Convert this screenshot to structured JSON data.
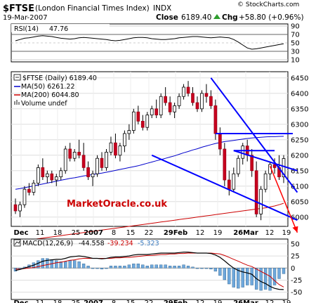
{
  "header": {
    "symbol": "$FTSE",
    "name": "(London Financial Times Index)",
    "exchange": "INDX",
    "date": "19-Mar-2007",
    "close_label": "Close",
    "close_value": "6189.40",
    "chg_label": "Chg",
    "chg_value": "+58.80 (+0.96%)",
    "watermark": "© StockCharts.com",
    "chg_arrow_color": "#2e9e2e"
  },
  "rsi": {
    "label": "RSI(14)",
    "value": "47.76",
    "ticks": [
      "90",
      "70",
      "50",
      "30",
      "10"
    ],
    "tick_values": [
      90,
      70,
      50,
      30,
      10
    ],
    "ylim": [
      5,
      95
    ],
    "values": [
      55,
      58,
      61,
      62,
      64,
      66,
      67,
      66,
      65,
      63,
      61,
      60,
      59,
      60,
      62,
      63,
      62,
      61,
      60,
      59,
      58,
      56,
      55,
      56,
      58,
      60,
      62,
      63,
      63,
      62,
      60,
      59,
      58,
      58,
      59,
      60,
      62,
      63,
      64,
      65,
      65,
      64,
      63,
      62,
      63,
      64,
      63,
      62,
      58,
      52,
      45,
      38,
      35,
      36,
      38,
      40,
      42,
      44,
      46,
      47.76
    ]
  },
  "price": {
    "legend_title": "$FTSE (Daily) 6189.40",
    "legend_ma50": "MA(50) 6261.22",
    "legend_ma200": "MA(200) 6044.80",
    "legend_volume": "Volume undef",
    "ma50_color": "#0000cc",
    "ma200_color": "#cc0000",
    "watermark_text": "MarketOracle.co.uk",
    "ticks": [
      "6450",
      "6400",
      "6350",
      "6300",
      "6250",
      "6200",
      "6150",
      "6100",
      "6050",
      "6000"
    ],
    "tick_values": [
      6450,
      6400,
      6350,
      6300,
      6250,
      6200,
      6150,
      6100,
      6050,
      6000
    ],
    "ylim": [
      5970,
      6470
    ]
  },
  "x_axis": {
    "labels": [
      "Dec",
      "11",
      "18",
      "25",
      "2007",
      "8",
      "15",
      "22",
      "29Feb",
      "12",
      "19",
      "26Mar",
      "12",
      "19"
    ]
  },
  "macd": {
    "label": "MACD(12,26,9)",
    "v1": "-44.558",
    "v2": "-39.234",
    "v3": "-5.323",
    "ticks": [
      "50",
      "25",
      "0",
      "-25",
      "-50"
    ],
    "tick_values": [
      50,
      25,
      0,
      -25,
      -50
    ],
    "ylim": [
      -65,
      60
    ],
    "line_color": "#000000",
    "signal_color": "#cc0000",
    "hist_color": "#6fa8dc"
  },
  "chart_data": {
    "type": "candlestick",
    "title": "$FTSE (London Financial Times Index) INDX",
    "n_bars": 60,
    "ohlc": [
      [
        6040,
        6060,
        6010,
        6020
      ],
      [
        6020,
        6050,
        6000,
        6040
      ],
      [
        6040,
        6100,
        6030,
        6090
      ],
      [
        6090,
        6110,
        6070,
        6080
      ],
      [
        6080,
        6120,
        6070,
        6110
      ],
      [
        6110,
        6170,
        6100,
        6160
      ],
      [
        6160,
        6190,
        6120,
        6130
      ],
      [
        6130,
        6150,
        6110,
        6140
      ],
      [
        6140,
        6150,
        6110,
        6120
      ],
      [
        6120,
        6140,
        6100,
        6130
      ],
      [
        6130,
        6160,
        6120,
        6150
      ],
      [
        6150,
        6230,
        6140,
        6220
      ],
      [
        6220,
        6240,
        6180,
        6190
      ],
      [
        6190,
        6220,
        6180,
        6210
      ],
      [
        6210,
        6250,
        6190,
        6200
      ],
      [
        6200,
        6240,
        6150,
        6160
      ],
      [
        6160,
        6180,
        6120,
        6130
      ],
      [
        6130,
        6150,
        6100,
        6140
      ],
      [
        6140,
        6200,
        6130,
        6190
      ],
      [
        6190,
        6210,
        6150,
        6160
      ],
      [
        6160,
        6220,
        6150,
        6210
      ],
      [
        6210,
        6260,
        6200,
        6240
      ],
      [
        6240,
        6270,
        6190,
        6200
      ],
      [
        6200,
        6240,
        6180,
        6230
      ],
      [
        6230,
        6280,
        6210,
        6270
      ],
      [
        6270,
        6300,
        6250,
        6280
      ],
      [
        6280,
        6350,
        6270,
        6340
      ],
      [
        6340,
        6360,
        6300,
        6310
      ],
      [
        6310,
        6330,
        6280,
        6290
      ],
      [
        6290,
        6340,
        6280,
        6330
      ],
      [
        6330,
        6360,
        6320,
        6350
      ],
      [
        6350,
        6380,
        6320,
        6330
      ],
      [
        6330,
        6400,
        6320,
        6390
      ],
      [
        6390,
        6420,
        6360,
        6370
      ],
      [
        6370,
        6390,
        6330,
        6340
      ],
      [
        6340,
        6370,
        6320,
        6360
      ],
      [
        6360,
        6400,
        6350,
        6390
      ],
      [
        6390,
        6430,
        6380,
        6420
      ],
      [
        6420,
        6440,
        6390,
        6400
      ],
      [
        6400,
        6420,
        6360,
        6370
      ],
      [
        6370,
        6390,
        6340,
        6350
      ],
      [
        6350,
        6410,
        6340,
        6400
      ],
      [
        6400,
        6430,
        6370,
        6390
      ],
      [
        6390,
        6410,
        6350,
        6360
      ],
      [
        6360,
        6380,
        6250,
        6270
      ],
      [
        6270,
        6290,
        6200,
        6220
      ],
      [
        6220,
        6240,
        6100,
        6120
      ],
      [
        6120,
        6150,
        6070,
        6090
      ],
      [
        6090,
        6160,
        6080,
        6140
      ],
      [
        6140,
        6200,
        6130,
        6190
      ],
      [
        6190,
        6240,
        6170,
        6230
      ],
      [
        6230,
        6250,
        6180,
        6200
      ],
      [
        6200,
        6220,
        6130,
        6150
      ],
      [
        6150,
        6180,
        6000,
        6010
      ],
      [
        6010,
        6100,
        5990,
        6090
      ],
      [
        6090,
        6150,
        6080,
        6140
      ],
      [
        6140,
        6180,
        6120,
        6170
      ],
      [
        6170,
        6190,
        6140,
        6160
      ],
      [
        6160,
        6200,
        6120,
        6130
      ],
      [
        6130,
        6200,
        6110,
        6189.4
      ]
    ],
    "ma50": [
      6090,
      6092,
      6095,
      6098,
      6101,
      6104,
      6107,
      6110,
      6113,
      6116,
      6119,
      6122,
      6125,
      6127,
      6130,
      6133,
      6135,
      6138,
      6140,
      6142,
      6145,
      6148,
      6151,
      6154,
      6157,
      6160,
      6163,
      6166,
      6170,
      6174,
      6178,
      6182,
      6186,
      6190,
      6194,
      6198,
      6203,
      6208,
      6212,
      6217,
      6221,
      6226,
      6230,
      6234,
      6238,
      6241,
      6244,
      6246,
      6248,
      6250,
      6252,
      6254,
      6256,
      6257,
      6258,
      6259,
      6260,
      6260,
      6261,
      6261.22
    ],
    "ma200": [
      5920,
      5922,
      5924,
      5926,
      5928,
      5930,
      5932,
      5934,
      5936,
      5938,
      5940,
      5942,
      5944,
      5946,
      5948,
      5950,
      5952,
      5954,
      5956,
      5958,
      5960,
      5962,
      5964,
      5966,
      5968,
      5970,
      5972,
      5974,
      5976,
      5978,
      5980,
      5982,
      5984,
      5986,
      5988,
      5990,
      5992,
      5994,
      5996,
      5998,
      6000,
      6002,
      6004,
      6006,
      6008,
      6010,
      6012,
      6014,
      6016,
      6018,
      6020,
      6022,
      6024,
      6026,
      6028,
      6030,
      6033,
      6036,
      6040,
      6044.8
    ],
    "macd_line": [
      -5,
      -3,
      0,
      3,
      6,
      10,
      14,
      16,
      17,
      18,
      18,
      20,
      23,
      24,
      25,
      24,
      22,
      20,
      20,
      19,
      20,
      22,
      23,
      23,
      24,
      25,
      27,
      28,
      28,
      28,
      29,
      30,
      31,
      31,
      31,
      31,
      32,
      33,
      33,
      32,
      31,
      31,
      31,
      30,
      27,
      22,
      15,
      7,
      0,
      -5,
      -8,
      -10,
      -13,
      -22,
      -28,
      -32,
      -38,
      -42,
      -44,
      -44.558
    ],
    "signal_line": [
      -2,
      -2,
      -1,
      0,
      1,
      3,
      5,
      7,
      9,
      11,
      12,
      14,
      16,
      17,
      19,
      20,
      20,
      20,
      20,
      20,
      20,
      20,
      21,
      21,
      22,
      22,
      23,
      24,
      25,
      26,
      26,
      27,
      28,
      28,
      29,
      29,
      30,
      30,
      31,
      31,
      31,
      31,
      31,
      31,
      30,
      29,
      26,
      22,
      18,
      14,
      10,
      6,
      3,
      -2,
      -7,
      -12,
      -17,
      -26,
      -34,
      -39.234
    ],
    "trendlines": [
      {
        "from": [
          43,
          6450
        ],
        "to": [
          62,
          6080
        ]
      },
      {
        "from": [
          30,
          6200
        ],
        "to": [
          62,
          5990
        ]
      },
      {
        "from": [
          44,
          6270
        ],
        "to": [
          61,
          6270
        ]
      },
      {
        "from": [
          48,
          6215
        ],
        "to": [
          57,
          6215
        ]
      },
      {
        "from": [
          48,
          6215
        ],
        "to": [
          62,
          6150
        ]
      }
    ],
    "red_arrow": {
      "from": [
        56,
        6165
      ],
      "to": [
        62,
        5950
      ]
    }
  }
}
